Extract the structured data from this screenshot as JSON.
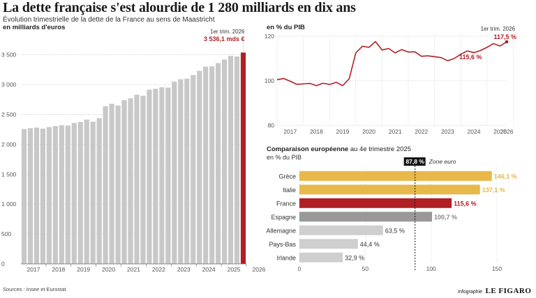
{
  "title": "La dette française s'est alourdie de 1 280 milliards en dix ans",
  "subtitle": "Évolution trimestrielle de la dette de la France au sens de Maastricht",
  "sources": "Sources : Insee et Eurostat",
  "credit": {
    "label": "Infographie",
    "brand": "LE FIGARO"
  },
  "colors": {
    "grey_bar": "#c8c8c8",
    "highlight": "#b01f24",
    "line": "#b01f24",
    "gold": "#e8b84a",
    "spain": "#999999",
    "other": "#cfcfcf"
  },
  "chart_data": [
    {
      "type": "bar",
      "unit_label": "en milliards d'euros",
      "ylim": [
        0,
        3600
      ],
      "yticks": [
        "0",
        "500",
        "1 000",
        "1 500",
        "2 000",
        "2 500",
        "3 000",
        "3 500"
      ],
      "year_labels": [
        "2017",
        "2018",
        "2019",
        "2020",
        "2021",
        "2022",
        "2023",
        "2024",
        "2025",
        "2026"
      ],
      "values": [
        2256,
        2270,
        2280,
        2263,
        2290,
        2305,
        2320,
        2315,
        2358,
        2375,
        2415,
        2380,
        2438,
        2640,
        2680,
        2650,
        2740,
        2770,
        2830,
        2813,
        2915,
        2930,
        2955,
        2950,
        3050,
        3090,
        3100,
        3160,
        3230,
        3300,
        3305,
        3360,
        3420,
        3480,
        3470,
        3536
      ],
      "highlight_label": "1er trim. 2026",
      "highlight_value_label": "3 536,1 mds €",
      "grid": true
    },
    {
      "type": "line",
      "unit_label": "en % du PIB",
      "ylim": [
        80,
        120
      ],
      "yticks": [
        "80",
        "100",
        "120"
      ],
      "year_labels": [
        "2017",
        "2018",
        "2019",
        "2020",
        "2021",
        "2022",
        "2023",
        "2024",
        "2025",
        "2026"
      ],
      "values": [
        100.5,
        101.0,
        99.8,
        98.4,
        98.6,
        98.8,
        97.8,
        98.9,
        98.3,
        99.3,
        97.8,
        100.9,
        112.5,
        115.5,
        115.0,
        117.6,
        113.8,
        114.5,
        112.5,
        114.0,
        112.9,
        113.0,
        111.0,
        111.2,
        110.8,
        110.4,
        109.0,
        110.0,
        111.9,
        113.4,
        112.6,
        113.6,
        115.0,
        116.7,
        115.6,
        117.5
      ],
      "highlight_label": "1er trim. 2026",
      "highlight_value_label": "117,5 %",
      "prev_value_label": "115,6 %",
      "grid": true
    },
    {
      "type": "bar",
      "orientation": "horizontal",
      "title": "Comparaison européenne",
      "title_suffix": "au 4e trimestre 2025",
      "unit_label": "en % du PIB",
      "xlim": [
        0,
        160
      ],
      "xticks": [
        "0",
        "50",
        "100",
        "150"
      ],
      "categories": [
        "Grèce",
        "Italie",
        "France",
        "Espagne",
        "Allemagne",
        "Pays-Bas",
        "Irlande"
      ],
      "values": [
        146.1,
        137.1,
        115.6,
        100.7,
        63.5,
        44.4,
        32.9
      ],
      "value_labels": [
        "146,1 %",
        "137,1 %",
        "115,6 %",
        "100,7 %",
        "63,5 %",
        "44,4 %",
        "32,9 %"
      ],
      "reference_value": 87.8,
      "reference_value_label": "87,8 %",
      "reference_label": "Zone euro"
    }
  ]
}
